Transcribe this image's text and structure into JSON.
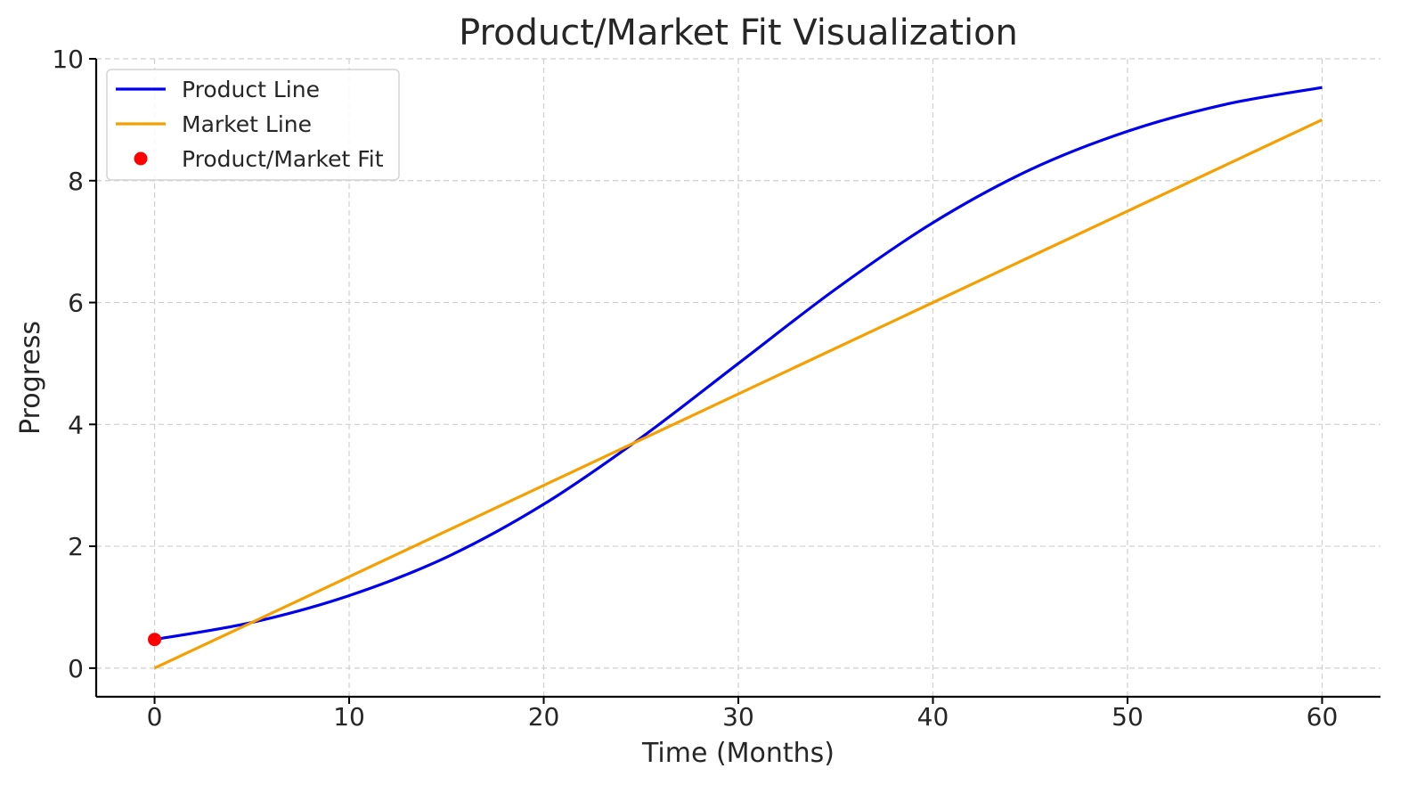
{
  "chart_data": {
    "type": "line",
    "title": "Product/Market Fit Visualization",
    "xlabel": "Time (Months)",
    "ylabel": "Progress",
    "xlim": [
      -3,
      63
    ],
    "ylim": [
      -0.47,
      10
    ],
    "xticks": [
      0,
      10,
      20,
      30,
      40,
      50,
      60
    ],
    "yticks": [
      0,
      2,
      4,
      6,
      8,
      10
    ],
    "xtick_labels": [
      "0",
      "10",
      "20",
      "30",
      "40",
      "50",
      "60"
    ],
    "ytick_labels": [
      "0",
      "2",
      "4",
      "6",
      "8",
      "10"
    ],
    "grid": true,
    "legend_position": "top-left",
    "series": [
      {
        "name": "Product Line",
        "color": "#0000ee",
        "style": "line",
        "x": [
          0,
          5,
          10,
          15,
          20,
          25,
          30,
          35,
          40,
          45,
          50,
          55,
          60
        ],
        "y": [
          0.47,
          0.75,
          1.19,
          1.82,
          2.69,
          3.78,
          5.0,
          6.22,
          7.31,
          8.18,
          8.81,
          9.25,
          9.53
        ]
      },
      {
        "name": "Market Line",
        "color": "#f5a000",
        "style": "line",
        "x": [
          0,
          60
        ],
        "y": [
          0,
          9
        ]
      },
      {
        "name": "Product/Market Fit",
        "color": "#ff0000",
        "style": "point",
        "x": [
          0
        ],
        "y": [
          0.47
        ]
      }
    ]
  }
}
